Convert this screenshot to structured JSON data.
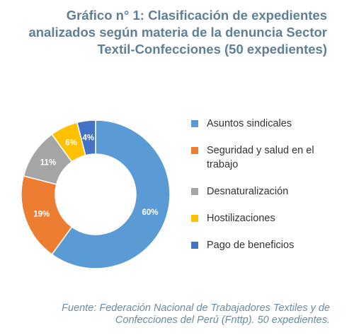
{
  "title_lines": [
    "Gráfico n° 1: Clasificación de expedientes",
    "analizados según materia de la denuncia Sector",
    "Textil-Confecciones (50 expedientes)"
  ],
  "caption_lines": [
    "Fuente: Federación Nacional de Trabajadores Textiles y de",
    "Confecciones del Perú (Fnttp). 50 expedientes."
  ],
  "legend": [
    {
      "lines": [
        "Asuntos sindicales"
      ],
      "color": "#5b9bd5"
    },
    {
      "lines": [
        "Seguridad y salud en el",
        "trabajo"
      ],
      "color": "#ed7d31"
    },
    {
      "lines": [
        "Desnaturalización"
      ],
      "color": "#a5a5a5"
    },
    {
      "lines": [
        "Hostilizaciones"
      ],
      "color": "#ffc000"
    },
    {
      "lines": [
        "Pago de beneficios"
      ],
      "color": "#4472c4"
    }
  ],
  "chart_data": {
    "type": "pie",
    "style": "donut",
    "title": "Gráfico n° 1: Clasificación de expedientes analizados según materia de la denuncia Sector Textil-Confecciones (50 expedientes)",
    "categories": [
      "Asuntos sindicales",
      "Seguridad y salud en el trabajo",
      "Desnaturalización",
      "Hostilizaciones",
      "Pago de beneficios"
    ],
    "values": [
      60,
      19,
      11,
      6,
      4
    ],
    "labels": [
      "60%",
      "19%",
      "11%",
      "6%",
      "4%"
    ],
    "colors": [
      "#5b9bd5",
      "#ed7d31",
      "#a5a5a5",
      "#ffc000",
      "#4472c4"
    ],
    "legend_position": "right"
  }
}
